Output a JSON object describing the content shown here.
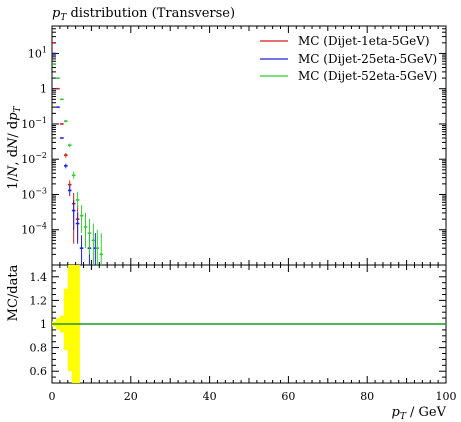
{
  "chart_data": [
    {
      "type": "scatter",
      "title": "p_T distribution (Transverse)",
      "ylabel": "1/N dN/dp_T",
      "yscale": "log",
      "ylim": [
        1e-05,
        60
      ],
      "xlim": [
        0,
        100
      ],
      "yticks": [
        {
          "v": 0.0001,
          "label": "10^-4"
        },
        {
          "v": 0.001,
          "label": "10^-3"
        },
        {
          "v": 0.01,
          "label": "10^-2"
        },
        {
          "v": 0.1,
          "label": "10^-1"
        },
        {
          "v": 1,
          "label": "1"
        },
        {
          "v": 10,
          "label": "10^1"
        }
      ],
      "legend_position": "top-right",
      "series": [
        {
          "name": "MC (Dijet-1eta-5GeV)",
          "color": "#d11f1f",
          "points": [
            {
              "x": 0.5,
              "y": 20,
              "lo": 20,
              "hi": 20
            },
            {
              "x": 1.5,
              "y": 1.0,
              "lo": 1.0,
              "hi": 1.0
            },
            {
              "x": 2.5,
              "y": 0.1,
              "lo": 0.1,
              "hi": 0.1
            },
            {
              "x": 3.5,
              "y": 0.013,
              "lo": 0.011,
              "hi": 0.015
            },
            {
              "x": 4.5,
              "y": 0.0019,
              "lo": 0.0014,
              "hi": 0.0025
            },
            {
              "x": 5.5,
              "y": 0.00055,
              "lo": 4e-05,
              "hi": 0.0011
            },
            {
              "x": 6.5,
              "y": 0.0002,
              "lo": 5e-05,
              "hi": 0.0005
            }
          ]
        },
        {
          "name": "MC (Dijet-25eta-5GeV)",
          "color": "#2020dd",
          "points": [
            {
              "x": 0.5,
              "y": 10,
              "lo": 10,
              "hi": 10
            },
            {
              "x": 1.5,
              "y": 0.3,
              "lo": 0.3,
              "hi": 0.3
            },
            {
              "x": 2.5,
              "y": 0.04,
              "lo": 0.04,
              "hi": 0.04
            },
            {
              "x": 3.5,
              "y": 0.0065,
              "lo": 0.0055,
              "hi": 0.0075
            },
            {
              "x": 4.5,
              "y": 0.0013,
              "lo": 0.0009,
              "hi": 0.0018
            },
            {
              "x": 5.5,
              "y": 0.00035,
              "lo": 0.0001,
              "hi": 0.0007
            },
            {
              "x": 6.5,
              "y": 0.00015,
              "lo": 4e-05,
              "hi": 0.0003
            },
            {
              "x": 7.5,
              "y": 3e-05,
              "lo": 1e-05,
              "hi": 7e-05
            },
            {
              "x": 9.5,
              "y": 3e-05,
              "lo": 1e-05,
              "hi": 7e-05
            },
            {
              "x": 11,
              "y": 3e-05,
              "lo": 1e-05,
              "hi": 8e-05
            }
          ]
        },
        {
          "name": "MC (Dijet-52eta-5GeV)",
          "color": "#33cc33",
          "points": [
            {
              "x": 0.5,
              "y": 5,
              "lo": 5,
              "hi": 5
            },
            {
              "x": 1.5,
              "y": 2.0,
              "lo": 2.0,
              "hi": 2.0
            },
            {
              "x": 2.5,
              "y": 0.5,
              "lo": 0.5,
              "hi": 0.5
            },
            {
              "x": 3.5,
              "y": 0.12,
              "lo": 0.11,
              "hi": 0.13
            },
            {
              "x": 4.5,
              "y": 0.025,
              "lo": 0.022,
              "hi": 0.028
            },
            {
              "x": 5.5,
              "y": 0.0035,
              "lo": 0.0028,
              "hi": 0.0045
            },
            {
              "x": 6.5,
              "y": 0.0007,
              "lo": 0.0004,
              "hi": 0.0012
            },
            {
              "x": 7.5,
              "y": 0.00025,
              "lo": 8e-05,
              "hi": 0.0005
            },
            {
              "x": 8.5,
              "y": 0.00012,
              "lo": 3e-05,
              "hi": 0.0003
            },
            {
              "x": 9.5,
              "y": 8e-05,
              "lo": 2e-05,
              "hi": 0.0002
            },
            {
              "x": 10.5,
              "y": 5e-05,
              "lo": 1e-05,
              "hi": 0.00015
            },
            {
              "x": 11.5,
              "y": 3e-05,
              "lo": 1e-05,
              "hi": 0.0001
            },
            {
              "x": 12.5,
              "y": 2e-05,
              "lo": 1e-05,
              "hi": 8e-05
            }
          ]
        }
      ]
    },
    {
      "type": "area",
      "ylabel": "MC/data",
      "xlabel": "p_T / GeV",
      "xlim": [
        0,
        100
      ],
      "ylim": [
        0.5,
        1.5
      ],
      "xticks": [
        0,
        20,
        40,
        60,
        80,
        100
      ],
      "yticks": [
        0.6,
        0.8,
        1,
        1.2,
        1.4
      ],
      "band_color": "#ffff00",
      "band": [
        {
          "x0": 0,
          "x1": 1,
          "lo": 0.98,
          "hi": 1.02
        },
        {
          "x0": 1,
          "x1": 2,
          "lo": 0.95,
          "hi": 1.05
        },
        {
          "x0": 2,
          "x1": 3,
          "lo": 0.93,
          "hi": 1.07
        },
        {
          "x0": 3,
          "x1": 4,
          "lo": 0.78,
          "hi": 1.3
        },
        {
          "x0": 4,
          "x1": 5,
          "lo": 0.6,
          "hi": 1.5
        },
        {
          "x0": 5,
          "x1": 6,
          "lo": 0.5,
          "hi": 1.5
        },
        {
          "x0": 6,
          "x1": 7,
          "lo": 0.5,
          "hi": 1.5
        }
      ],
      "reference_line": {
        "y": 1,
        "color": "#1a9a1a"
      }
    }
  ]
}
